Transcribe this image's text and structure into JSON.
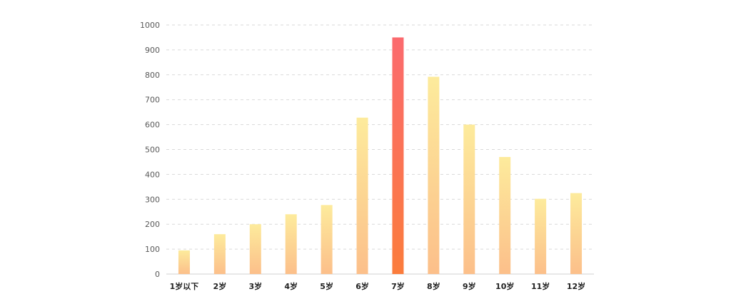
{
  "chart_data": {
    "type": "bar",
    "title": "",
    "xlabel": "",
    "ylabel": "",
    "categories": [
      "1岁以下",
      "2岁",
      "3岁",
      "4岁",
      "5岁",
      "6岁",
      "7岁",
      "8岁",
      "9岁",
      "10岁",
      "11岁",
      "12岁"
    ],
    "values": [
      95,
      160,
      200,
      240,
      277,
      628,
      950,
      792,
      600,
      470,
      302,
      325
    ],
    "ylim": [
      0,
      1000
    ],
    "yticks": [
      0,
      100,
      200,
      300,
      400,
      500,
      600,
      700,
      800,
      900,
      1000
    ],
    "grid": true,
    "highlight_index": 6,
    "colors": {
      "bar_top": "#fdeb9c",
      "bar_bottom": "#fcbf8a",
      "highlight_top": "#fb6a6e",
      "highlight_bottom": "#fb7c3c",
      "grid": "#d9d9d9"
    }
  }
}
